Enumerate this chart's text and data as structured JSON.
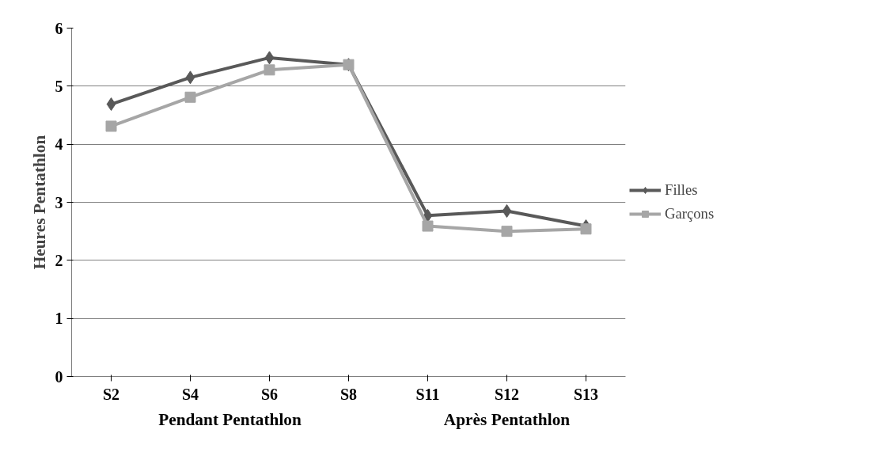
{
  "chart_data": {
    "type": "line",
    "ylabel": "Heures Pentathlon",
    "categories": [
      "S2",
      "S4",
      "S6",
      "S8",
      "S11",
      "S12",
      "S13"
    ],
    "series": [
      {
        "name": "Filles",
        "color": "#595959",
        "marker": "diamond",
        "values": [
          4.69,
          5.15,
          5.49,
          5.37,
          2.77,
          2.85,
          2.59
        ]
      },
      {
        "name": "Garçons",
        "color": "#a6a6a6",
        "marker": "square",
        "values": [
          4.31,
          4.81,
          5.28,
          5.37,
          2.59,
          2.5,
          2.54
        ]
      }
    ],
    "ylim": [
      0,
      6
    ],
    "yticks": [
      0,
      1,
      2,
      3,
      4,
      5,
      6
    ],
    "grid": "y",
    "legend": "right",
    "annotations": [
      "Pendant Pentathlon",
      "Après Pentathlon"
    ]
  }
}
